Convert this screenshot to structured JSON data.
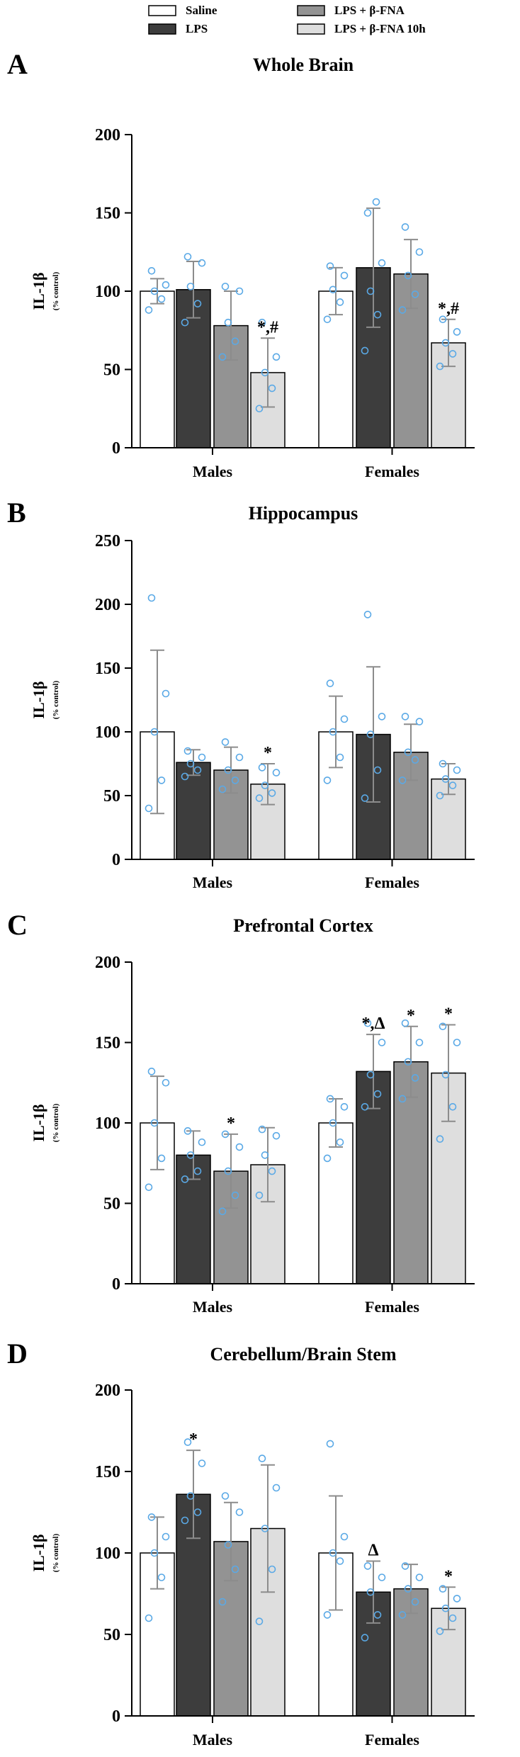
{
  "legend": [
    {
      "label": "Saline",
      "fill": "#ffffff"
    },
    {
      "label": "LPS",
      "fill": "#3d3d3d"
    },
    {
      "label": "LPS + β-FNA",
      "fill": "#939393"
    },
    {
      "label": "LPS + β-FNA 10h",
      "fill": "#dedede"
    }
  ],
  "colors": {
    "point": "#5aa9e6",
    "error": "#8c8c8c",
    "axis": "#000000",
    "bar_edge": "#000000"
  },
  "chart_data": [
    {
      "type": "bar",
      "panel_letter": "A",
      "title": "Whole Brain",
      "ylabel": "IL-1β",
      "ylabel_sub": "(% control)",
      "ylim": [
        0,
        200
      ],
      "yticks": [
        0,
        50,
        100,
        150,
        200
      ],
      "categories": [
        "Males",
        "Females"
      ],
      "series": [
        {
          "name": "Saline",
          "values": [
            100,
            100
          ],
          "errors": [
            8,
            15
          ],
          "points": [
            [
              88,
              95,
              100,
              104,
              113
            ],
            [
              82,
              93,
              101,
              110,
              116
            ]
          ]
        },
        {
          "name": "LPS",
          "values": [
            101,
            115
          ],
          "errors": [
            18,
            38
          ],
          "points": [
            [
              80,
              92,
              103,
              118,
              122
            ],
            [
              62,
              85,
              100,
              118,
              150,
              157
            ]
          ]
        },
        {
          "name": "LPS + β-FNA",
          "values": [
            78,
            111
          ],
          "errors": [
            22,
            22
          ],
          "points": [
            [
              58,
              68,
              80,
              100,
              103
            ],
            [
              88,
              98,
              110,
              125,
              141
            ]
          ]
        },
        {
          "name": "LPS + β-FNA 10h",
          "values": [
            48,
            67
          ],
          "errors": [
            22,
            15
          ],
          "points": [
            [
              25,
              38,
              48,
              58,
              80
            ],
            [
              52,
              60,
              67,
              74,
              82
            ]
          ]
        }
      ],
      "annotations": [
        {
          "category": 0,
          "series": 3,
          "text": "*,#"
        },
        {
          "category": 1,
          "series": 3,
          "text": "*,#"
        }
      ]
    },
    {
      "type": "bar",
      "panel_letter": "B",
      "title": "Hippocampus",
      "ylabel": "IL-1β",
      "ylabel_sub": "(% control)",
      "ylim": [
        0,
        250
      ],
      "yticks": [
        0,
        50,
        100,
        150,
        200,
        250
      ],
      "categories": [
        "Males",
        "Females"
      ],
      "series": [
        {
          "name": "Saline",
          "values": [
            100,
            100
          ],
          "errors": [
            64,
            28
          ],
          "points": [
            [
              40,
              62,
              100,
              130,
              205
            ],
            [
              62,
              80,
              100,
              110,
              138
            ]
          ]
        },
        {
          "name": "LPS",
          "values": [
            76,
            98
          ],
          "errors": [
            10,
            53
          ],
          "points": [
            [
              65,
              70,
              75,
              80,
              85
            ],
            [
              48,
              70,
              98,
              112,
              192
            ]
          ]
        },
        {
          "name": "LPS + β-FNA",
          "values": [
            70,
            84
          ],
          "errors": [
            18,
            22
          ],
          "points": [
            [
              55,
              62,
              70,
              80,
              92
            ],
            [
              62,
              78,
              84,
              108,
              112
            ]
          ]
        },
        {
          "name": "LPS + β-FNA 10h",
          "values": [
            59,
            63
          ],
          "errors": [
            16,
            12
          ],
          "points": [
            [
              48,
              52,
              58,
              68,
              72
            ],
            [
              50,
              58,
              63,
              70,
              75
            ]
          ]
        }
      ],
      "annotations": [
        {
          "category": 0,
          "series": 3,
          "text": "*"
        }
      ]
    },
    {
      "type": "bar",
      "panel_letter": "C",
      "title": "Prefrontal Cortex",
      "ylabel": "IL-1β",
      "ylabel_sub": "(% control)",
      "ylim": [
        0,
        200
      ],
      "yticks": [
        0,
        50,
        100,
        150,
        200
      ],
      "categories": [
        "Males",
        "Females"
      ],
      "series": [
        {
          "name": "Saline",
          "values": [
            100,
            100
          ],
          "errors": [
            29,
            15
          ],
          "points": [
            [
              60,
              78,
              100,
              125,
              132
            ],
            [
              78,
              88,
              100,
              110,
              115
            ]
          ]
        },
        {
          "name": "LPS",
          "values": [
            80,
            132
          ],
          "errors": [
            15,
            23
          ],
          "points": [
            [
              65,
              70,
              80,
              88,
              95
            ],
            [
              110,
              118,
              130,
              150,
              162
            ]
          ]
        },
        {
          "name": "LPS + β-FNA",
          "values": [
            70,
            138
          ],
          "errors": [
            23,
            22
          ],
          "points": [
            [
              45,
              55,
              70,
              85,
              93
            ],
            [
              115,
              128,
              138,
              150,
              162
            ]
          ]
        },
        {
          "name": "LPS + β-FNA 10h",
          "values": [
            74,
            131
          ],
          "errors": [
            23,
            30
          ],
          "points": [
            [
              55,
              70,
              80,
              92,
              96
            ],
            [
              90,
              110,
              130,
              150,
              160
            ]
          ]
        }
      ],
      "annotations": [
        {
          "category": 0,
          "series": 2,
          "text": "*"
        },
        {
          "category": 1,
          "series": 1,
          "text": "*,Δ"
        },
        {
          "category": 1,
          "series": 2,
          "text": "*"
        },
        {
          "category": 1,
          "series": 3,
          "text": "*"
        }
      ]
    },
    {
      "type": "bar",
      "panel_letter": "D",
      "title": "Cerebellum/Brain Stem",
      "ylabel": "IL-1β",
      "ylabel_sub": "(% control)",
      "ylim": [
        0,
        200
      ],
      "yticks": [
        0,
        50,
        100,
        150,
        200
      ],
      "categories": [
        "Males",
        "Females"
      ],
      "series": [
        {
          "name": "Saline",
          "values": [
            100,
            100
          ],
          "errors": [
            22,
            35
          ],
          "points": [
            [
              60,
              85,
              100,
              110,
              122
            ],
            [
              62,
              95,
              100,
              110,
              167
            ]
          ]
        },
        {
          "name": "LPS",
          "values": [
            136,
            76
          ],
          "errors": [
            27,
            19
          ],
          "points": [
            [
              120,
              125,
              135,
              155,
              168
            ],
            [
              48,
              62,
              76,
              85,
              92
            ]
          ]
        },
        {
          "name": "LPS + β-FNA",
          "values": [
            107,
            78
          ],
          "errors": [
            24,
            15
          ],
          "points": [
            [
              70,
              90,
              105,
              125,
              135
            ],
            [
              62,
              70,
              78,
              85,
              92
            ]
          ]
        },
        {
          "name": "LPS + β-FNA 10h",
          "values": [
            115,
            66
          ],
          "errors": [
            39,
            13
          ],
          "points": [
            [
              58,
              90,
              115,
              140,
              158
            ],
            [
              52,
              60,
              66,
              72,
              78
            ]
          ]
        }
      ],
      "annotations": [
        {
          "category": 0,
          "series": 1,
          "text": "*"
        },
        {
          "category": 1,
          "series": 1,
          "text": "Δ"
        },
        {
          "category": 1,
          "series": 3,
          "text": "*"
        }
      ]
    }
  ]
}
